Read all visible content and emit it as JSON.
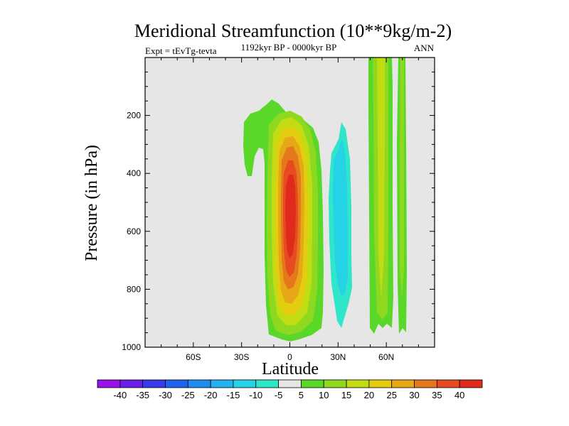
{
  "chart_data": {
    "type": "contour",
    "title": "Meridional Streamfunction (10**9kg/m-2)",
    "subtitle": "1192kyr BP - 0000kyr BP",
    "left_label": "Expt = tEvTg-tevta",
    "right_label": "ANN",
    "xlabel": "Latitude",
    "ylabel": "Pressure (in hPa)",
    "xlim": [
      -90,
      90
    ],
    "ylim": [
      1000,
      0
    ],
    "x_ticks": [
      {
        "value": -60,
        "label": "60S"
      },
      {
        "value": -30,
        "label": "30S"
      },
      {
        "value": 0,
        "label": "0"
      },
      {
        "value": 30,
        "label": "30N"
      },
      {
        "value": 60,
        "label": "60N"
      }
    ],
    "y_ticks": [
      {
        "value": 200,
        "label": "200"
      },
      {
        "value": 400,
        "label": "400"
      },
      {
        "value": 600,
        "label": "600"
      },
      {
        "value": 800,
        "label": "800"
      },
      {
        "value": 1000,
        "label": "1000"
      }
    ],
    "background_color": "#e6e6e6",
    "colorbar": {
      "levels": [
        "-40",
        "-35",
        "-30",
        "-25",
        "-20",
        "-15",
        "-10",
        "-5",
        "5",
        "10",
        "15",
        "20",
        "25",
        "30",
        "35",
        "40"
      ],
      "colors": [
        "#9a12e6",
        "#6a1ee6",
        "#3a3ae8",
        "#1f64ea",
        "#1f8cf0",
        "#25b0f0",
        "#25d2e6",
        "#30e6c8",
        "#e6e6e6",
        "#5ad82a",
        "#8ed820",
        "#c2dc14",
        "#e4cc10",
        "#e6a816",
        "#e6781c",
        "#e64c20",
        "#e02a1c"
      ]
    },
    "regions": [
      {
        "name": "subtropical-positive-cell",
        "level_value": 5,
        "x_range": [
          -17,
          12
        ],
        "p_range": [
          140,
          980
        ]
      },
      {
        "name": "nh-negative-cell",
        "level_value": -10,
        "x_range": [
          25,
          37
        ],
        "p_range": [
          225,
          920
        ]
      },
      {
        "name": "polar-positive-band",
        "level_value": 15,
        "x_range": [
          50,
          72
        ],
        "p_range": [
          0,
          960
        ]
      }
    ]
  }
}
